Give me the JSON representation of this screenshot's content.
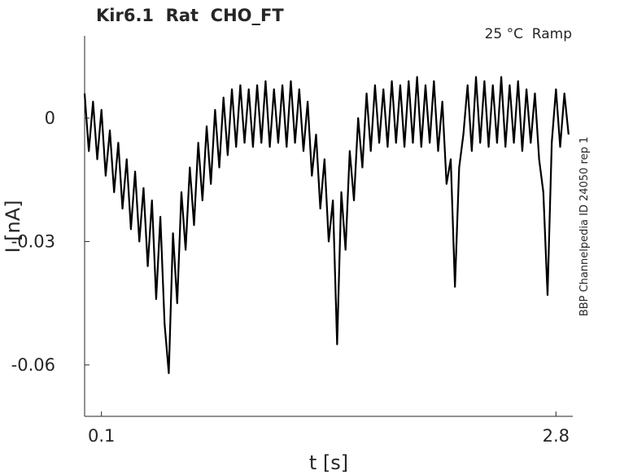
{
  "chart_data": {
    "type": "line",
    "title": "Kir6.1  Rat  CHO_FT",
    "annotation": "25 °C  Ramp",
    "side_note": "BBP Channelpedia ID 24050 rep 1",
    "x_label": "t [s]",
    "y_label": "I [nA]",
    "xlim": [
      0,
      2.9
    ],
    "ylim": [
      -0.0725,
      0.02
    ],
    "xticks": [
      0.1,
      2.8
    ],
    "yticks": [
      -0.06,
      -0.03,
      0
    ],
    "x": [
      0,
      0.025,
      0.05,
      0.075,
      0.1,
      0.125,
      0.15,
      0.175,
      0.2,
      0.225,
      0.25,
      0.275,
      0.3,
      0.325,
      0.35,
      0.375,
      0.4,
      0.425,
      0.45,
      0.475,
      0.5,
      0.525,
      0.55,
      0.575,
      0.6,
      0.625,
      0.65,
      0.675,
      0.7,
      0.725,
      0.75,
      0.775,
      0.8,
      0.825,
      0.85,
      0.875,
      0.9,
      0.925,
      0.95,
      0.975,
      1.0,
      1.025,
      1.05,
      1.075,
      1.1,
      1.125,
      1.15,
      1.175,
      1.2,
      1.225,
      1.25,
      1.275,
      1.3,
      1.325,
      1.35,
      1.375,
      1.4,
      1.425,
      1.45,
      1.475,
      1.5,
      1.525,
      1.55,
      1.575,
      1.6,
      1.625,
      1.65,
      1.675,
      1.7,
      1.725,
      1.75,
      1.775,
      1.8,
      1.825,
      1.85,
      1.875,
      1.9,
      1.925,
      1.95,
      1.975,
      2.0,
      2.025,
      2.05,
      2.075,
      2.1,
      2.125,
      2.15,
      2.175,
      2.2,
      2.225,
      2.25,
      2.275,
      2.3,
      2.325,
      2.35,
      2.375,
      2.4,
      2.425,
      2.45,
      2.475,
      2.5,
      2.525,
      2.55,
      2.575,
      2.6,
      2.625,
      2.65,
      2.675,
      2.7,
      2.725,
      2.75,
      2.775,
      2.8,
      2.825,
      2.85,
      2.875
    ],
    "series": [
      {
        "color": "#000000",
        "values": [
          0.006,
          -0.008,
          0.004,
          -0.01,
          0.002,
          -0.014,
          -0.003,
          -0.018,
          -0.006,
          -0.022,
          -0.01,
          -0.027,
          -0.013,
          -0.03,
          -0.017,
          -0.036,
          -0.02,
          -0.044,
          -0.024,
          -0.05,
          -0.062,
          -0.028,
          -0.045,
          -0.018,
          -0.032,
          -0.012,
          -0.026,
          -0.006,
          -0.02,
          -0.002,
          -0.016,
          0.002,
          -0.012,
          0.005,
          -0.009,
          0.007,
          -0.007,
          0.008,
          -0.006,
          0.007,
          -0.007,
          0.008,
          -0.006,
          0.009,
          -0.007,
          0.007,
          -0.006,
          0.008,
          -0.007,
          0.009,
          -0.006,
          0.007,
          -0.008,
          0.004,
          -0.014,
          -0.004,
          -0.022,
          -0.01,
          -0.03,
          -0.02,
          -0.055,
          -0.018,
          -0.032,
          -0.008,
          -0.02,
          0.0,
          -0.012,
          0.006,
          -0.008,
          0.008,
          -0.006,
          0.007,
          -0.007,
          0.009,
          -0.006,
          0.008,
          -0.007,
          0.009,
          -0.006,
          0.01,
          -0.007,
          0.008,
          -0.006,
          0.009,
          -0.008,
          0.004,
          -0.016,
          -0.01,
          -0.041,
          -0.012,
          -0.004,
          0.008,
          -0.008,
          0.01,
          -0.006,
          0.009,
          -0.007,
          0.008,
          -0.006,
          0.01,
          -0.007,
          0.008,
          -0.006,
          0.009,
          -0.008,
          0.007,
          -0.006,
          0.006,
          -0.01,
          -0.018,
          -0.043,
          -0.006,
          0.007,
          -0.007,
          0.006,
          -0.004
        ]
      }
    ]
  }
}
